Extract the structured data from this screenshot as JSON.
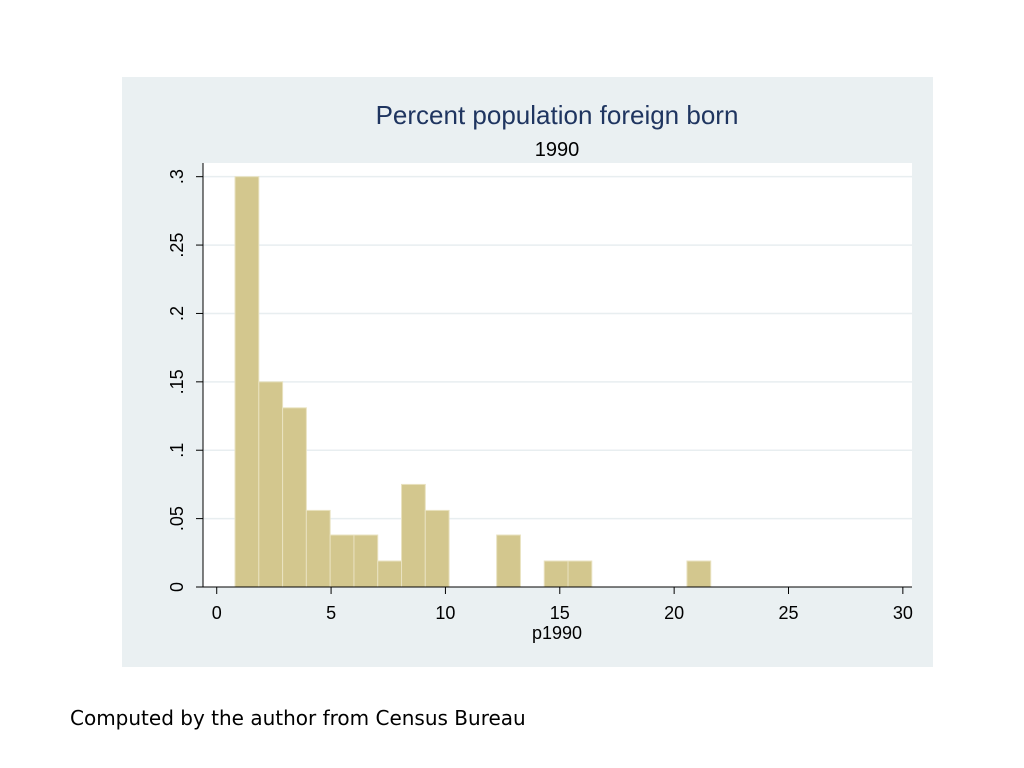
{
  "caption": "Computed by the author from Census Bureau",
  "colors": {
    "panel": "#eaf0f2",
    "plot": "#ffffff",
    "bar_fill": "#d3c78e",
    "bar_stroke": "#e9e2c0",
    "grid": "#e8eef0",
    "title": "#1f3560",
    "axis": "#000000"
  },
  "chart_data": {
    "type": "bar",
    "subtype": "histogram",
    "title": "Percent population foreign born",
    "subtitle": "1990",
    "xlabel": "p1990",
    "ylabel": "",
    "xlim": [
      -0.6,
      30.4
    ],
    "ylim": [
      0,
      0.31
    ],
    "x_ticks": [
      0,
      5,
      10,
      15,
      20,
      25,
      30
    ],
    "x_tick_labels": [
      "0",
      "5",
      "10",
      "15",
      "20",
      "25",
      "30"
    ],
    "y_ticks": [
      0,
      0.05,
      0.1,
      0.15,
      0.2,
      0.25,
      0.3
    ],
    "y_tick_labels": [
      "0",
      ".05",
      ".1",
      ".15",
      ".2",
      ".25",
      ".3"
    ],
    "grid": true,
    "legend": "none",
    "bin_width": 1.04,
    "bins": [
      {
        "x0": 0.8,
        "value": 0.3
      },
      {
        "x0": 1.84,
        "value": 0.15
      },
      {
        "x0": 2.88,
        "value": 0.131
      },
      {
        "x0": 3.92,
        "value": 0.056
      },
      {
        "x0": 4.96,
        "value": 0.038
      },
      {
        "x0": 6.0,
        "value": 0.038
      },
      {
        "x0": 7.04,
        "value": 0.019
      },
      {
        "x0": 8.08,
        "value": 0.075
      },
      {
        "x0": 9.12,
        "value": 0.056
      },
      {
        "x0": 10.16,
        "value": 0
      },
      {
        "x0": 11.2,
        "value": 0
      },
      {
        "x0": 12.24,
        "value": 0.038
      },
      {
        "x0": 13.28,
        "value": 0
      },
      {
        "x0": 14.32,
        "value": 0.019
      },
      {
        "x0": 15.36,
        "value": 0.019
      },
      {
        "x0": 16.4,
        "value": 0
      },
      {
        "x0": 17.44,
        "value": 0
      },
      {
        "x0": 18.48,
        "value": 0
      },
      {
        "x0": 19.52,
        "value": 0
      },
      {
        "x0": 20.56,
        "value": 0.019
      }
    ]
  }
}
